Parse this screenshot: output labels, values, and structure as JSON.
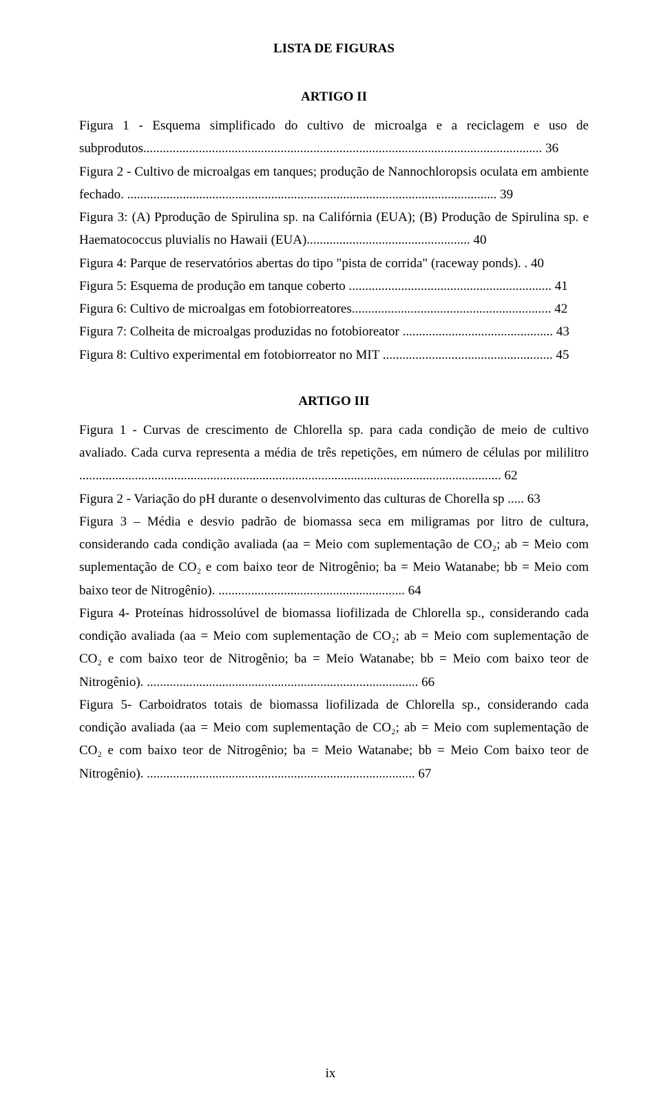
{
  "title": "LISTA DE FIGURAS",
  "sections": [
    {
      "heading": "ARTIGO II",
      "entries": [
        "Figura 1 - Esquema simplificado do cultivo de microalga e a reciclagem e uso de subprodutos.......................................................................................................................... 36",
        "Figura 2 - Cultivo de microalgas em tanques; produção de Nannochloropsis oculata em ambiente fechado. ................................................................................................................. 39",
        "Figura 3: (A) Pprodução de Spirulina sp. na Califórnia (EUA); (B) Produção de Spirulina sp. e Haematococcus pluvialis no Hawaii (EUA).................................................. 40",
        "Figura 4: Parque de reservatórios abertas do tipo \"pista de corrida\" (raceway ponds). . 40",
        "Figura 5: Esquema de produção em tanque coberto .............................................................. 41",
        "Figura 6: Cultivo de microalgas em fotobiorreatores............................................................. 42",
        "Figura 7: Colheita de microalgas produzidas no fotobioreator .............................................. 43",
        "Figura 8: Cultivo experimental em fotobiorreator no MIT .................................................... 45"
      ]
    },
    {
      "heading": "ARTIGO III",
      "entries": [
        "Figura 1 - Curvas de crescimento de Chlorella sp. para cada condição de meio de cultivo avaliado. Cada curva representa a média de três repetições, em número de células por mililitro ................................................................................................................................. 62",
        "Figura 2 - Variação do pH durante o desenvolvimento das culturas de Chorella sp ..... 63",
        "Figura 3 – Média e desvio padrão de biomassa seca em miligramas por litro de cultura, considerando cada condição avaliada (aa = Meio com suplementação de CO₂; ab = Meio com suplementação de CO₂ e com baixo teor de Nitrogênio;  ba = Meio Watanabe; bb = Meio com baixo teor de Nitrogênio). ......................................................... 64",
        "Figura 4- Proteínas hidrossolúvel de biomassa liofilizada de Chlorella sp., considerando cada condição avaliada (aa = Meio com suplementação de CO₂; ab = Meio com suplementação de CO₂ e com baixo teor de Nitrogênio;  ba = Meio Watanabe; bb = Meio com baixo teor de Nitrogênio). ................................................................................... 66",
        "Figura 5- Carboidratos totais de biomassa liofilizada de Chlorella sp., considerando cada condição avaliada (aa = Meio com suplementação de CO₂; ab = Meio com suplementação de CO₂ e com baixo teor de Nitrogênio;  ba = Meio Watanabe; bb = Meio Com baixo teor de Nitrogênio). .................................................................................. 67"
      ]
    }
  ],
  "page_number": "ix"
}
